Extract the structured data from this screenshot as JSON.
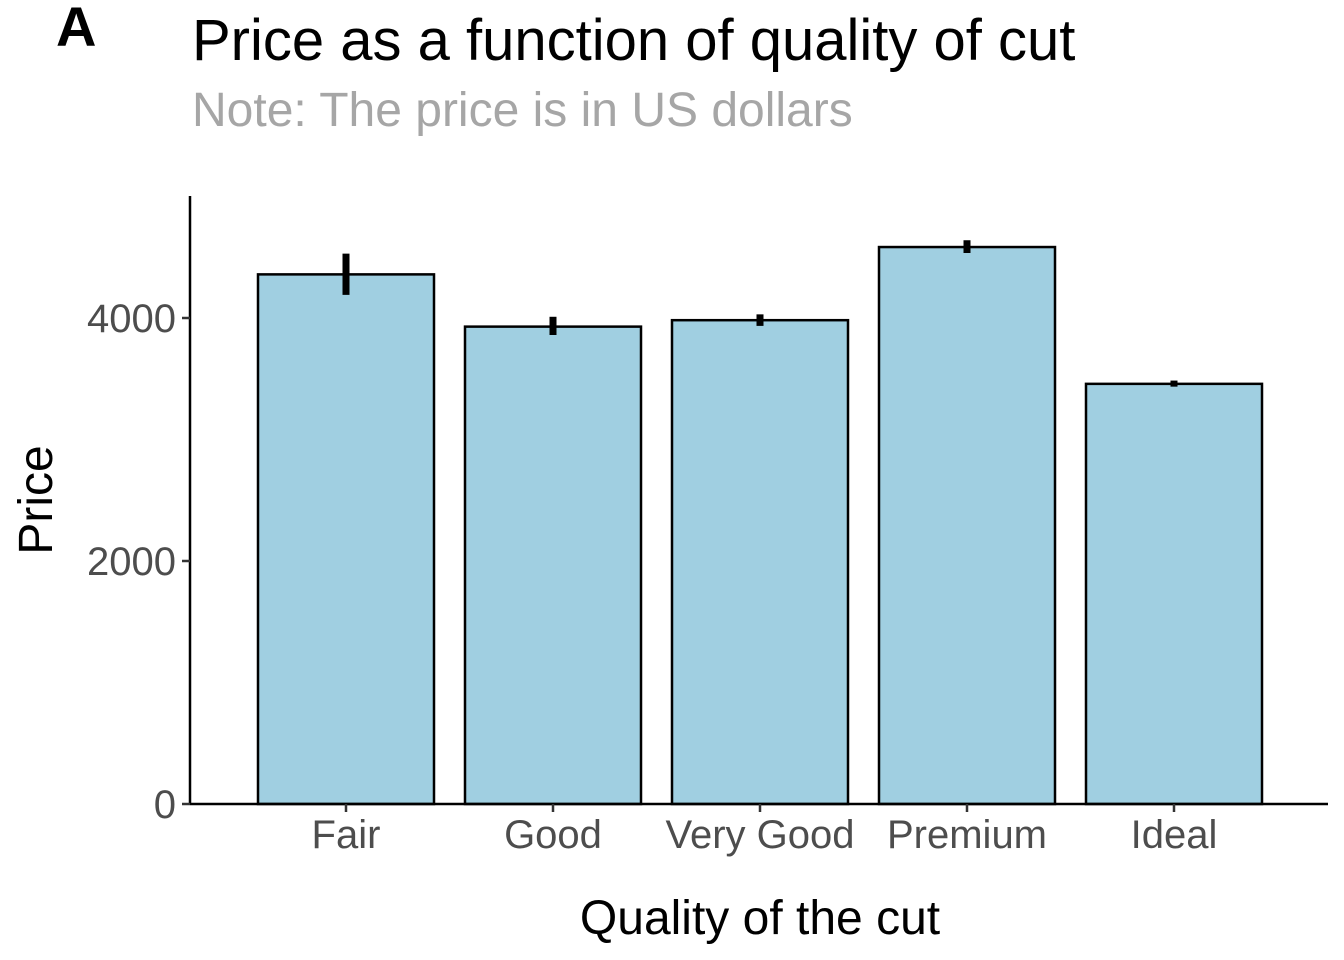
{
  "panel_tag": "A",
  "chart_data": {
    "type": "bar",
    "title": "Price as a function of quality of cut",
    "subtitle": "Note: The price is in US dollars",
    "xlabel": "Quality of the cut",
    "ylabel": "Price",
    "categories": [
      "Fair",
      "Good",
      "Very Good",
      "Premium",
      "Ideal"
    ],
    "values": [
      4359,
      3929,
      3982,
      4584,
      3458
    ],
    "error_low": [
      4190,
      3860,
      3935,
      4535,
      3435
    ],
    "error_high": [
      4530,
      4010,
      4030,
      4640,
      3485
    ],
    "ylim": [
      0,
      5000
    ],
    "yticks": [
      0,
      2000,
      4000
    ],
    "ytick_labels": [
      "0",
      "2000",
      "4000"
    ],
    "grid": false,
    "legend": "none",
    "colors": {
      "bar_fill": "#a0cfe1",
      "bar_stroke": "#000000",
      "error_bar": "#000000"
    }
  }
}
